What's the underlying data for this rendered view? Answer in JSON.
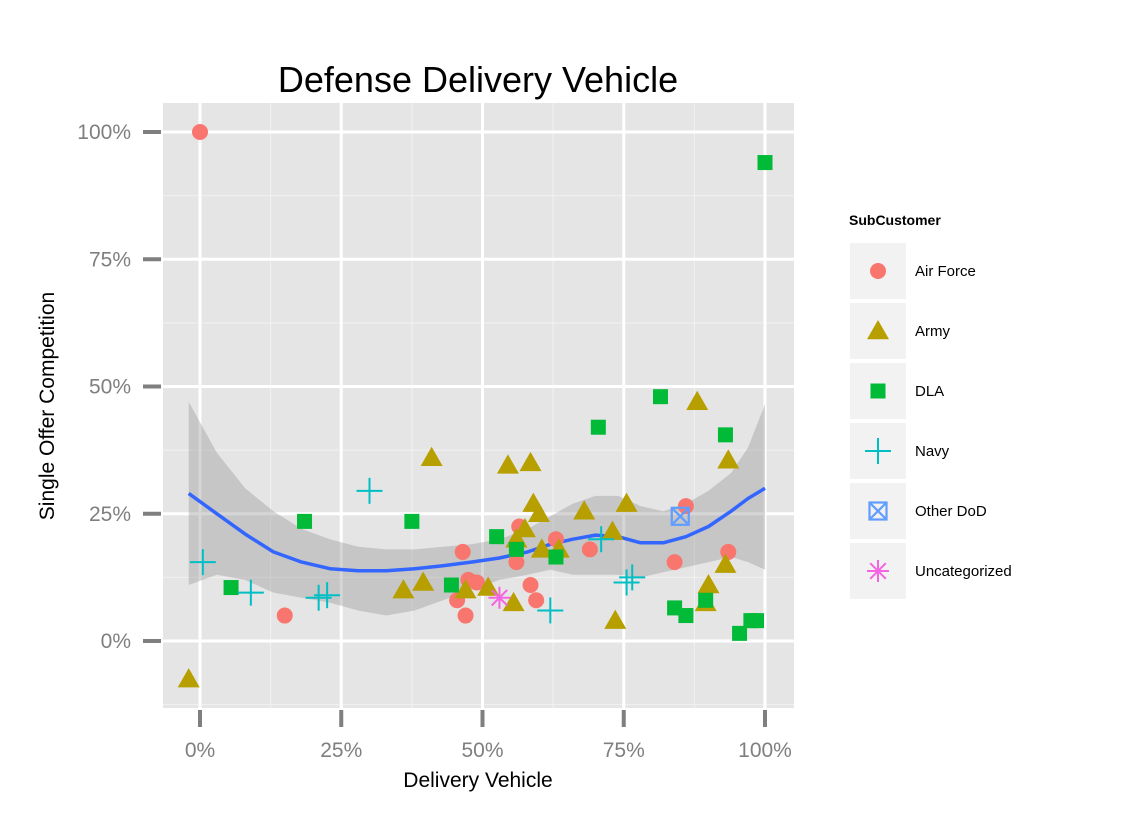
{
  "chart_data": {
    "type": "scatter",
    "title": "Defense Delivery Vehicle",
    "xlabel": "Delivery Vehicle",
    "ylabel": "Single Offer Competition",
    "xlim": [
      -0.07,
      1.05
    ],
    "ylim": [
      -0.13,
      1.05
    ],
    "x_ticks": [
      0,
      0.25,
      0.5,
      0.75,
      1.0
    ],
    "x_tick_labels": [
      "0%",
      "25%",
      "50%",
      "75%",
      "100%"
    ],
    "y_ticks": [
      0,
      0.25,
      0.5,
      0.75,
      1.0
    ],
    "y_tick_labels": [
      "0%",
      "25%",
      "50%",
      "75%",
      "100%"
    ],
    "grid": true,
    "legend": {
      "title": "SubCustomer",
      "position": "right",
      "entries": [
        "Air Force",
        "Army",
        "DLA",
        "Navy",
        "Other DoD",
        "Uncategorized"
      ]
    },
    "series": [
      {
        "name": "Air Force",
        "color": "#F8766D",
        "shape": "circle",
        "points": [
          [
            0.0,
            1.0
          ],
          [
            0.15,
            0.05
          ],
          [
            0.455,
            0.08
          ],
          [
            0.465,
            0.175
          ],
          [
            0.47,
            0.05
          ],
          [
            0.475,
            0.12
          ],
          [
            0.49,
            0.115
          ],
          [
            0.56,
            0.155
          ],
          [
            0.565,
            0.225
          ],
          [
            0.585,
            0.11
          ],
          [
            0.595,
            0.08
          ],
          [
            0.63,
            0.2
          ],
          [
            0.69,
            0.18
          ],
          [
            0.84,
            0.155
          ],
          [
            0.86,
            0.265
          ],
          [
            0.935,
            0.175
          ]
        ]
      },
      {
        "name": "Army",
        "color": "#B79F00",
        "shape": "triangle",
        "points": [
          [
            -0.02,
            -0.075
          ],
          [
            0.36,
            0.1
          ],
          [
            0.395,
            0.115
          ],
          [
            0.41,
            0.36
          ],
          [
            0.47,
            0.1
          ],
          [
            0.51,
            0.105
          ],
          [
            0.545,
            0.345
          ],
          [
            0.555,
            0.075
          ],
          [
            0.56,
            0.2
          ],
          [
            0.575,
            0.22
          ],
          [
            0.585,
            0.35
          ],
          [
            0.59,
            0.27
          ],
          [
            0.6,
            0.25
          ],
          [
            0.605,
            0.18
          ],
          [
            0.635,
            0.18
          ],
          [
            0.68,
            0.255
          ],
          [
            0.73,
            0.215
          ],
          [
            0.735,
            0.04
          ],
          [
            0.755,
            0.27
          ],
          [
            0.88,
            0.47
          ],
          [
            0.895,
            0.075
          ],
          [
            0.9,
            0.11
          ],
          [
            0.93,
            0.15
          ],
          [
            0.935,
            0.355
          ]
        ]
      },
      {
        "name": "DLA",
        "color": "#00BA38",
        "shape": "square",
        "points": [
          [
            0.055,
            0.105
          ],
          [
            0.185,
            0.235
          ],
          [
            0.375,
            0.235
          ],
          [
            0.445,
            0.11
          ],
          [
            0.525,
            0.205
          ],
          [
            0.56,
            0.18
          ],
          [
            0.63,
            0.165
          ],
          [
            0.705,
            0.42
          ],
          [
            0.815,
            0.48
          ],
          [
            0.84,
            0.065
          ],
          [
            0.86,
            0.05
          ],
          [
            0.895,
            0.08
          ],
          [
            0.93,
            0.405
          ],
          [
            0.955,
            0.015
          ],
          [
            0.975,
            0.04
          ],
          [
            0.985,
            0.04
          ],
          [
            1.0,
            0.94
          ]
        ]
      },
      {
        "name": "Navy",
        "color": "#00BFC4",
        "shape": "plus",
        "points": [
          [
            0.005,
            0.155
          ],
          [
            0.09,
            0.095
          ],
          [
            0.21,
            0.085
          ],
          [
            0.225,
            0.09
          ],
          [
            0.3,
            0.295
          ],
          [
            0.62,
            0.06
          ],
          [
            0.71,
            0.2
          ],
          [
            0.755,
            0.115
          ],
          [
            0.765,
            0.125
          ]
        ]
      },
      {
        "name": "Other DoD",
        "color": "#619CFF",
        "shape": "boxx",
        "points": [
          [
            0.85,
            0.245
          ]
        ]
      },
      {
        "name": "Uncategorized",
        "color": "#F564E3",
        "shape": "asterisk",
        "points": [
          [
            0.53,
            0.085
          ]
        ]
      }
    ],
    "smooth_line": {
      "color": "#3366FF",
      "points": [
        [
          -0.02,
          0.29
        ],
        [
          0.03,
          0.25
        ],
        [
          0.08,
          0.21
        ],
        [
          0.13,
          0.175
        ],
        [
          0.18,
          0.155
        ],
        [
          0.23,
          0.142
        ],
        [
          0.28,
          0.138
        ],
        [
          0.33,
          0.138
        ],
        [
          0.38,
          0.142
        ],
        [
          0.43,
          0.148
        ],
        [
          0.48,
          0.155
        ],
        [
          0.53,
          0.163
        ],
        [
          0.58,
          0.175
        ],
        [
          0.62,
          0.19
        ],
        [
          0.66,
          0.2
        ],
        [
          0.7,
          0.208
        ],
        [
          0.74,
          0.205
        ],
        [
          0.78,
          0.193
        ],
        [
          0.82,
          0.193
        ],
        [
          0.86,
          0.205
        ],
        [
          0.9,
          0.225
        ],
        [
          0.94,
          0.255
        ],
        [
          0.97,
          0.28
        ],
        [
          1.0,
          0.3
        ]
      ],
      "ci_upper": [
        [
          -0.02,
          0.47
        ],
        [
          0.03,
          0.37
        ],
        [
          0.08,
          0.3
        ],
        [
          0.13,
          0.255
        ],
        [
          0.18,
          0.22
        ],
        [
          0.23,
          0.2
        ],
        [
          0.28,
          0.185
        ],
        [
          0.33,
          0.18
        ],
        [
          0.38,
          0.18
        ],
        [
          0.43,
          0.185
        ],
        [
          0.48,
          0.19
        ],
        [
          0.53,
          0.2
        ],
        [
          0.58,
          0.22
        ],
        [
          0.62,
          0.245
        ],
        [
          0.66,
          0.27
        ],
        [
          0.7,
          0.285
        ],
        [
          0.74,
          0.285
        ],
        [
          0.78,
          0.265
        ],
        [
          0.82,
          0.255
        ],
        [
          0.86,
          0.27
        ],
        [
          0.9,
          0.295
        ],
        [
          0.94,
          0.33
        ],
        [
          0.97,
          0.38
        ],
        [
          1.0,
          0.465
        ]
      ],
      "ci_lower": [
        [
          -0.02,
          0.11
        ],
        [
          0.03,
          0.13
        ],
        [
          0.08,
          0.12
        ],
        [
          0.13,
          0.095
        ],
        [
          0.18,
          0.085
        ],
        [
          0.23,
          0.075
        ],
        [
          0.28,
          0.06
        ],
        [
          0.33,
          0.05
        ],
        [
          0.38,
          0.06
        ],
        [
          0.43,
          0.08
        ],
        [
          0.48,
          0.1
        ],
        [
          0.53,
          0.12
        ],
        [
          0.58,
          0.13
        ],
        [
          0.62,
          0.14
        ],
        [
          0.66,
          0.13
        ],
        [
          0.7,
          0.13
        ],
        [
          0.74,
          0.13
        ],
        [
          0.78,
          0.125
        ],
        [
          0.82,
          0.135
        ],
        [
          0.86,
          0.145
        ],
        [
          0.9,
          0.155
        ],
        [
          0.94,
          0.165
        ],
        [
          0.97,
          0.155
        ],
        [
          1.0,
          0.14
        ]
      ]
    }
  }
}
